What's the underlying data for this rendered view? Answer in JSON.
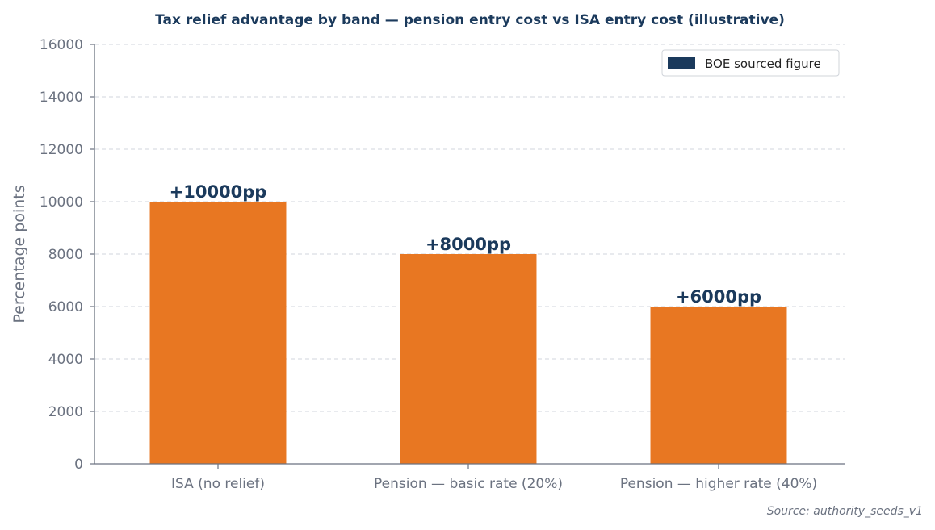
{
  "chart_data": {
    "type": "bar",
    "title": "Tax relief advantage by band — pension entry cost vs ISA entry cost (illustrative)",
    "xlabel": "",
    "ylabel": "Percentage points",
    "categories": [
      "ISA (no relief)",
      "Pension — basic rate (20%)",
      "Pension — higher rate (40%)"
    ],
    "values": [
      10000,
      8000,
      6000
    ],
    "data_labels": [
      "+10000pp",
      "+8000pp",
      "+6000pp"
    ],
    "ylim": [
      0,
      16000
    ],
    "yticks": [
      "0",
      "2000",
      "4000",
      "6000",
      "8000",
      "10000",
      "12000",
      "14000",
      "16000"
    ],
    "grid": true,
    "legend": {
      "placement": "top-right",
      "entries": [
        {
          "label": "BOE sourced figure",
          "color": "#1b3a5c"
        }
      ]
    },
    "colors": {
      "bar": "#e87722",
      "data_label": "#1b3a5c",
      "title": "#1b3a5c",
      "axis": "#6b7280",
      "grid": "#d9dde3"
    }
  },
  "source_note": "Source: authority_seeds_v1"
}
